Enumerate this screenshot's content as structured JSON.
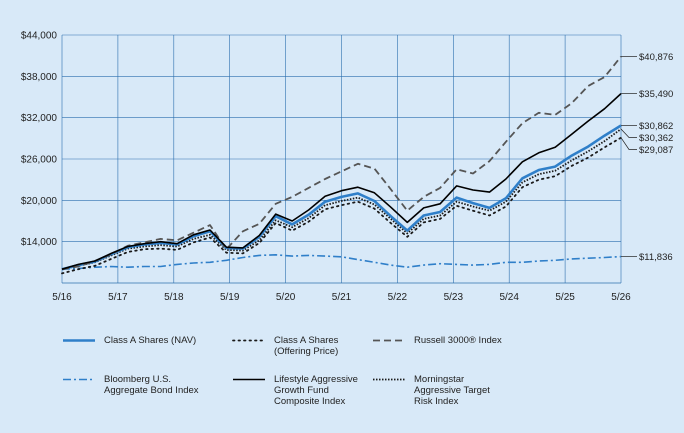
{
  "chart_data": {
    "type": "line",
    "x_ticks": [
      "5/16",
      "5/17",
      "5/18",
      "5/19",
      "5/20",
      "5/21",
      "5/22",
      "5/23",
      "5/24",
      "5/25",
      "5/26"
    ],
    "y_ticks": [
      "$14,000",
      "$20,000",
      "$26,000",
      "$32,000",
      "$38,000",
      "$44,000"
    ],
    "ylim": [
      8000,
      44000
    ],
    "grid": true,
    "legend_placement": "bottom",
    "series": [
      {
        "key": "class_a_nav",
        "name": "Class A Shares (NAV)",
        "color": "#2f7fc9",
        "style": "solid-thick",
        "end_label": "$30,862",
        "values": [
          10000,
          10600,
          11100,
          12200,
          13200,
          13600,
          13800,
          13600,
          14800,
          15500,
          13100,
          13000,
          14700,
          17700,
          16500,
          17900,
          19800,
          20500,
          21000,
          19900,
          17700,
          15600,
          17800,
          18300,
          20400,
          19600,
          18900,
          20300,
          23200,
          24400,
          24900,
          26500,
          27800,
          29400,
          30862
        ]
      },
      {
        "key": "class_a_offer",
        "name": "Class A Shares (Offering Price)",
        "color": "#1a1a1a",
        "style": "dotted",
        "end_label": "$29,087",
        "values": [
          9400,
          10000,
          10500,
          11500,
          12500,
          12900,
          13000,
          12800,
          13900,
          14600,
          12400,
          12300,
          13800,
          16700,
          15600,
          16900,
          18700,
          19300,
          19800,
          18800,
          16700,
          14700,
          16800,
          17300,
          19200,
          18500,
          17800,
          19100,
          21900,
          23000,
          23500,
          25000,
          26200,
          27700,
          29087
        ]
      },
      {
        "key": "russell",
        "name": "Russell 3000® Index",
        "color": "#555555",
        "style": "dashed",
        "end_label": "$40,876",
        "values": [
          10000,
          10400,
          11200,
          12200,
          13400,
          13900,
          14400,
          14200,
          15300,
          16400,
          12900,
          15500,
          16600,
          19500,
          20500,
          21800,
          23100,
          24200,
          25300,
          24600,
          21600,
          18500,
          20500,
          21800,
          24500,
          23900,
          25700,
          28500,
          31200,
          32700,
          32400,
          34100,
          36600,
          37900,
          40876
        ]
      },
      {
        "key": "bond",
        "name": "Bloomberg U.S. Aggregate Bond Index",
        "color": "#2f7fc9",
        "style": "dashdot",
        "end_label": "$11,836",
        "values": [
          10000,
          10100,
          10300,
          10400,
          10300,
          10400,
          10400,
          10700,
          10900,
          11000,
          11300,
          11700,
          12000,
          12100,
          11900,
          12000,
          11900,
          11800,
          11400,
          11000,
          10600,
          10300,
          10600,
          10800,
          10700,
          10600,
          10700,
          11000,
          11000,
          11200,
          11300,
          11500,
          11600,
          11700,
          11836
        ]
      },
      {
        "key": "lifestyle",
        "name": "Lifestyle Aggressive Growth Fund Composite Index",
        "color": "#000000",
        "style": "solid",
        "end_label": "$35,490",
        "values": [
          10000,
          10700,
          11200,
          12300,
          13300,
          13700,
          14000,
          13700,
          15000,
          15700,
          13200,
          13100,
          14900,
          18000,
          17000,
          18600,
          20600,
          21400,
          21900,
          21100,
          19000,
          16800,
          18900,
          19500,
          22100,
          21500,
          21200,
          23100,
          25600,
          26900,
          27700,
          29600,
          31500,
          33300,
          35490
        ]
      },
      {
        "key": "morningstar",
        "name": "Morningstar Aggressive Target Risk Index",
        "color": "#1a1a1a",
        "style": "densedot",
        "end_label": "$30,362",
        "values": [
          10000,
          10500,
          11000,
          12000,
          13000,
          13300,
          13500,
          13300,
          14400,
          15000,
          12800,
          12700,
          14200,
          17100,
          16100,
          17400,
          19300,
          19900,
          20400,
          19400,
          17300,
          15200,
          17300,
          17800,
          19800,
          19100,
          18500,
          19800,
          22600,
          23800,
          24300,
          25800,
          27100,
          28600,
          30362
        ]
      }
    ]
  },
  "legend": [
    {
      "key": "class_a_nav",
      "label": "Class A Shares (NAV)"
    },
    {
      "key": "class_a_offer",
      "label": "Class A Shares\n(Offering Price)"
    },
    {
      "key": "russell",
      "label": "Russell 3000® Index"
    },
    {
      "key": "bond",
      "label": "Bloomberg U.S.\nAggregate Bond Index"
    },
    {
      "key": "lifestyle",
      "label": "Lifestyle Aggressive\nGrowth Fund\nComposite Index"
    },
    {
      "key": "morningstar",
      "label": "Morningstar\nAggressive Target\nRisk Index"
    }
  ]
}
